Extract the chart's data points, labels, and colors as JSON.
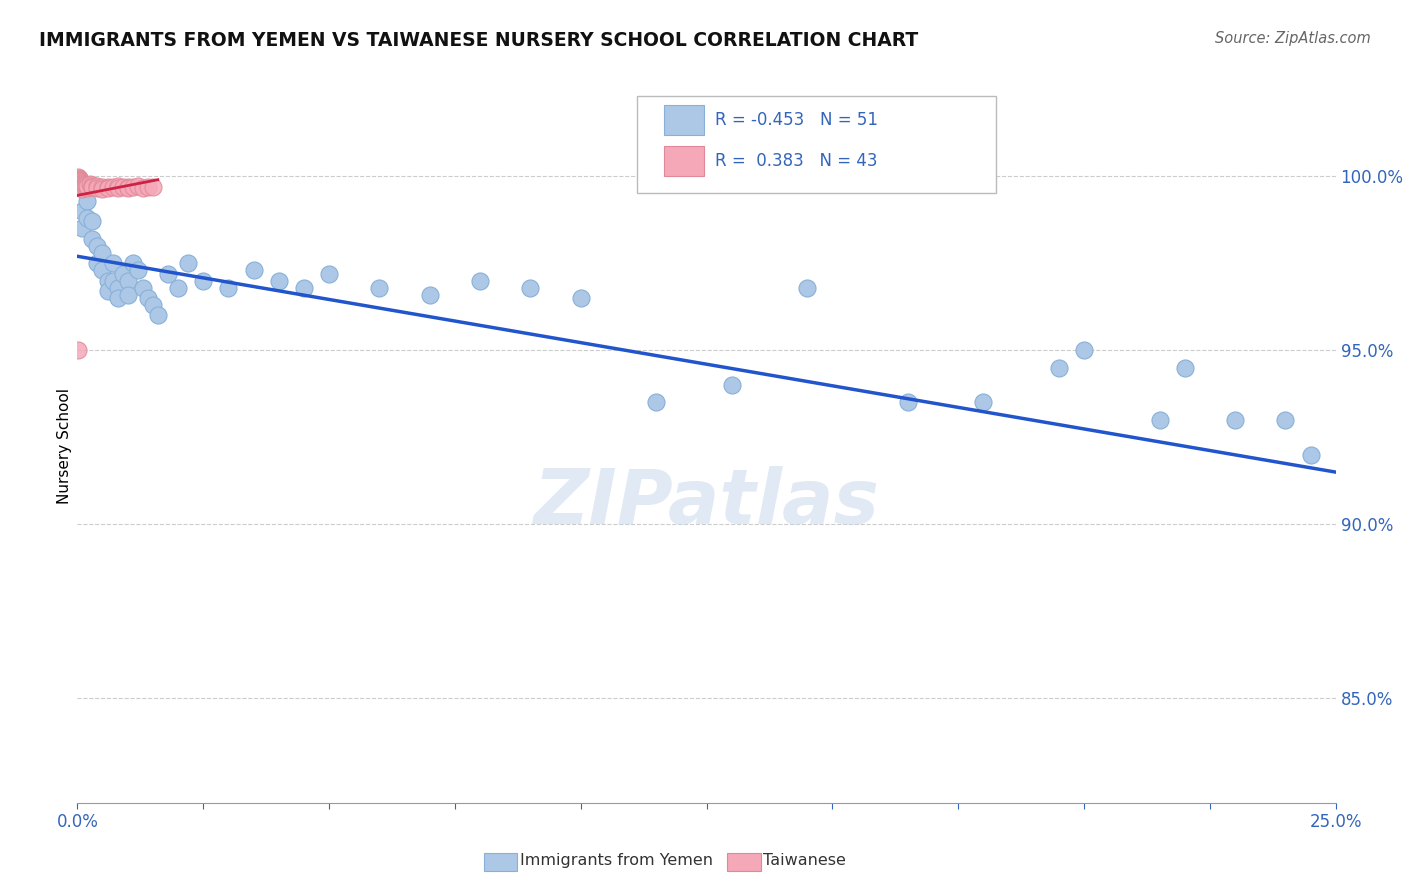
{
  "title": "IMMIGRANTS FROM YEMEN VS TAIWANESE NURSERY SCHOOL CORRELATION CHART",
  "source": "Source: ZipAtlas.com",
  "ylabel": "Nursery School",
  "legend_label_1": "Immigrants from Yemen",
  "legend_label_2": "Taiwanese",
  "R1": -0.453,
  "N1": 51,
  "R2": 0.383,
  "N2": 43,
  "color1": "#adc8e6",
  "color2": "#f5a8b8",
  "line_color1": "#2255cc",
  "line_color2": "#cc2244",
  "xlim": [
    0.0,
    0.25
  ],
  "ylim": [
    0.82,
    1.025
  ],
  "yticks_right": [
    0.85,
    0.9,
    0.95,
    1.0
  ],
  "ytick_labels_right": [
    "85.0%",
    "90.0%",
    "95.0%",
    "100.0%"
  ],
  "blue_x": [
    0.001,
    0.001,
    0.002,
    0.002,
    0.003,
    0.003,
    0.004,
    0.004,
    0.005,
    0.005,
    0.006,
    0.006,
    0.007,
    0.007,
    0.008,
    0.008,
    0.009,
    0.01,
    0.01,
    0.011,
    0.012,
    0.013,
    0.014,
    0.015,
    0.016,
    0.018,
    0.02,
    0.022,
    0.025,
    0.03,
    0.035,
    0.04,
    0.045,
    0.05,
    0.06,
    0.07,
    0.08,
    0.09,
    0.1,
    0.115,
    0.13,
    0.145,
    0.165,
    0.18,
    0.195,
    0.2,
    0.215,
    0.22,
    0.23,
    0.24,
    0.245
  ],
  "blue_y": [
    0.99,
    0.985,
    0.993,
    0.988,
    0.987,
    0.982,
    0.98,
    0.975,
    0.978,
    0.973,
    0.97,
    0.967,
    0.975,
    0.97,
    0.968,
    0.965,
    0.972,
    0.97,
    0.966,
    0.975,
    0.973,
    0.968,
    0.965,
    0.963,
    0.96,
    0.972,
    0.968,
    0.975,
    0.97,
    0.968,
    0.973,
    0.97,
    0.968,
    0.972,
    0.968,
    0.966,
    0.97,
    0.968,
    0.965,
    0.935,
    0.94,
    0.968,
    0.935,
    0.935,
    0.945,
    0.95,
    0.93,
    0.945,
    0.93,
    0.93,
    0.92
  ],
  "pink_x": [
    0.0002,
    0.0003,
    0.0004,
    0.0004,
    0.0005,
    0.0005,
    0.0006,
    0.0006,
    0.0007,
    0.0007,
    0.0008,
    0.0009,
    0.001,
    0.001,
    0.001,
    0.001,
    0.0015,
    0.0015,
    0.002,
    0.002,
    0.002,
    0.0025,
    0.003,
    0.003,
    0.003,
    0.004,
    0.004,
    0.005,
    0.005,
    0.006,
    0.006,
    0.007,
    0.008,
    0.008,
    0.009,
    0.01,
    0.01,
    0.011,
    0.012,
    0.013,
    0.014,
    0.015,
    0.0001
  ],
  "pink_y": [
    0.9998,
    0.9995,
    0.9993,
    0.999,
    0.9988,
    0.9985,
    0.9985,
    0.9982,
    0.998,
    0.9978,
    0.9975,
    0.9972,
    0.997,
    0.9968,
    0.9965,
    0.9963,
    0.9975,
    0.997,
    0.9968,
    0.9965,
    0.9972,
    0.9978,
    0.9975,
    0.997,
    0.9968,
    0.9972,
    0.9965,
    0.9968,
    0.9963,
    0.997,
    0.9965,
    0.9968,
    0.9972,
    0.9965,
    0.9968,
    0.997,
    0.9965,
    0.9968,
    0.9972,
    0.9965,
    0.9968,
    0.997,
    0.95
  ],
  "blue_trendline_x": [
    0.0,
    0.25
  ],
  "blue_trendline_y": [
    0.977,
    0.915
  ],
  "pink_trendline_x": [
    0.0,
    0.016
  ],
  "pink_trendline_y": [
    0.9945,
    0.999
  ],
  "watermark": "ZIPatlas",
  "background_color": "#ffffff",
  "grid_color": "#cccccc",
  "grid_linestyle": "--"
}
